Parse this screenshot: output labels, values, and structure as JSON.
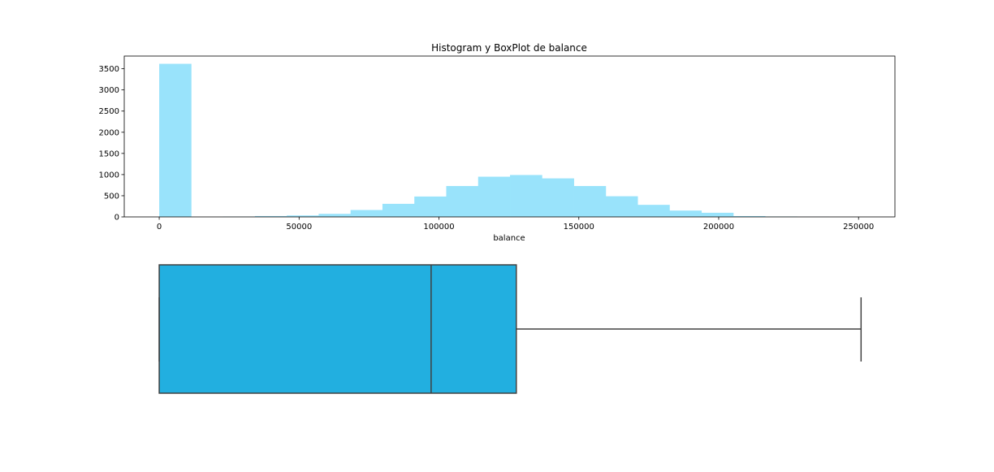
{
  "chart_data": [
    {
      "type": "bar",
      "subtype": "histogram",
      "title": "Histogram y BoxPlot de balance",
      "xlabel": "balance",
      "ylabel": "",
      "xlim": [
        -12500,
        263000
      ],
      "ylim": [
        0,
        3800
      ],
      "xticks": [
        0,
        50000,
        100000,
        150000,
        200000,
        250000
      ],
      "yticks": [
        0,
        500,
        1000,
        1500,
        2000,
        2500,
        3000,
        3500
      ],
      "bin_width": 11400,
      "bin_start": 0,
      "values": [
        3617,
        0,
        7,
        21,
        35,
        72,
        163,
        309,
        482,
        730,
        950,
        990,
        910,
        730,
        488,
        285,
        150,
        98,
        20,
        10,
        3,
        0
      ],
      "color": "#99e3fb"
    },
    {
      "type": "box",
      "xlabel": "",
      "min": 0,
      "q1": 0,
      "median": 97200,
      "q3": 127650,
      "max": 250898,
      "color": "#22afe0",
      "edge_color": "#404040"
    }
  ]
}
